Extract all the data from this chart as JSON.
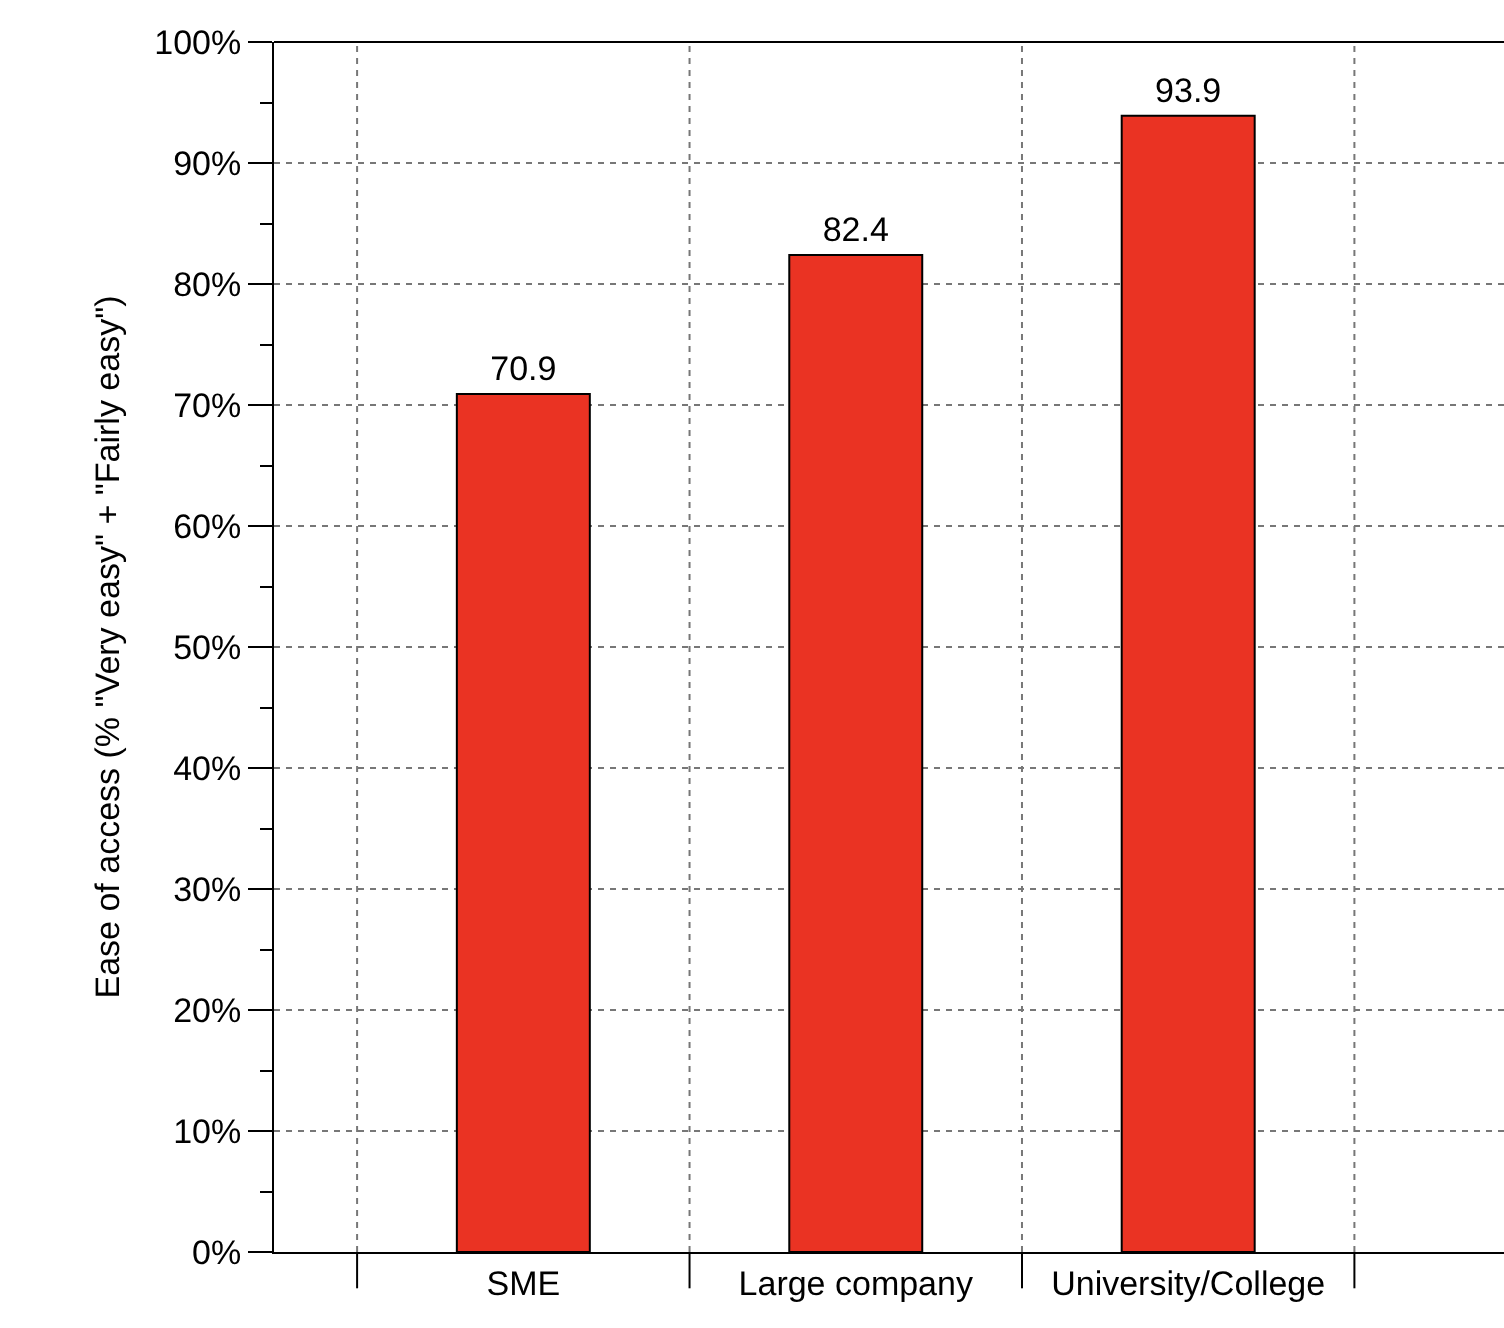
{
  "chart_data": {
    "type": "bar",
    "ylabel": "Ease of access (% \"Very easy\" + \"Fairly easy\")",
    "categories": [
      "SME",
      "Large company",
      "University/College"
    ],
    "values": [
      70.9,
      82.4,
      93.9
    ],
    "color": "#ea3323",
    "ylim": [
      0,
      100
    ],
    "yticks": [
      {
        "value": 0,
        "label": "0%"
      },
      {
        "value": 10,
        "label": "10%"
      },
      {
        "value": 20,
        "label": "20%"
      },
      {
        "value": 30,
        "label": "30%"
      },
      {
        "value": 40,
        "label": "40%"
      },
      {
        "value": 50,
        "label": "50%"
      },
      {
        "value": 60,
        "label": "60%"
      },
      {
        "value": 70,
        "label": "70%"
      },
      {
        "value": 80,
        "label": "80%"
      },
      {
        "value": 90,
        "label": "90%"
      },
      {
        "value": 100,
        "label": "100%"
      }
    ],
    "grid": true,
    "data_labels": true
  }
}
